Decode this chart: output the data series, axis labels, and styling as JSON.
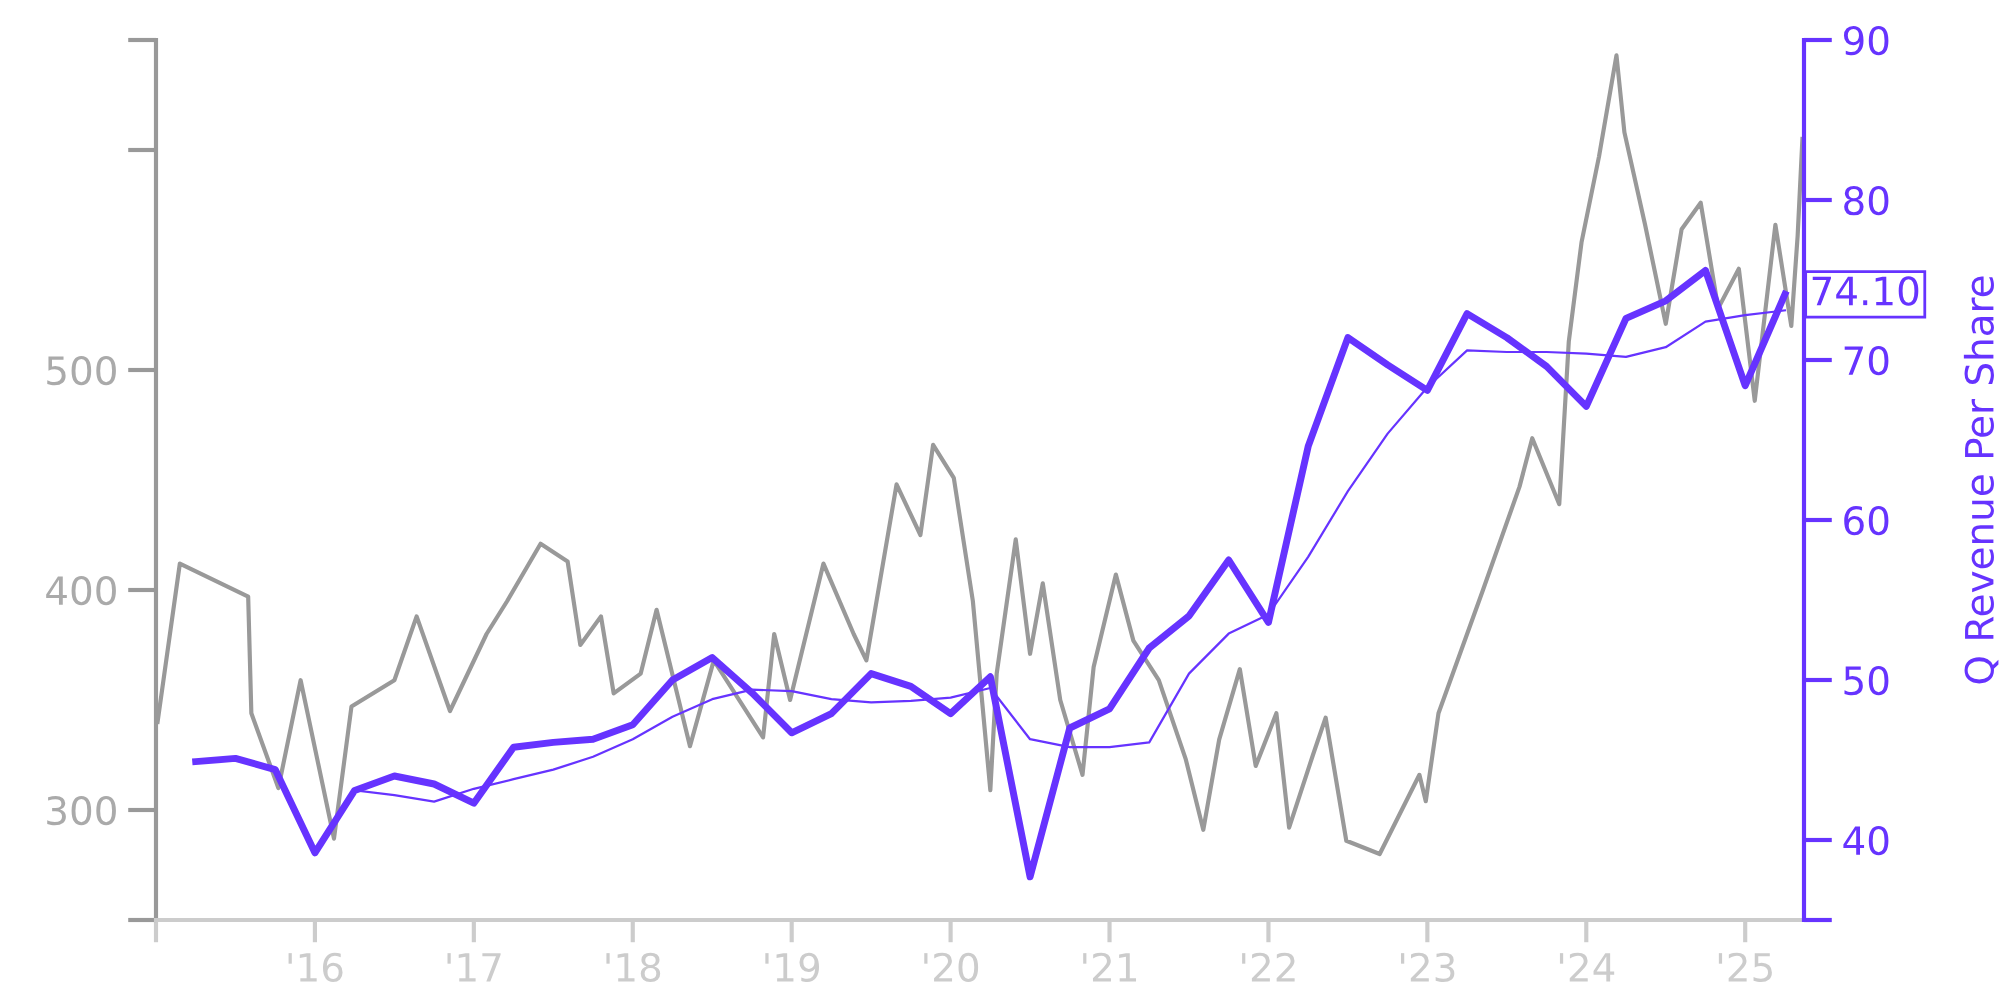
{
  "chart_data": {
    "type": "line",
    "ylabel": null,
    "y2label": "Q Revenue Per Share",
    "xlim": [
      2015.0,
      2025.37
    ],
    "xticks": [
      {
        "value": 2015,
        "label": null
      },
      {
        "value": 2016,
        "label": "'16"
      },
      {
        "value": 2017,
        "label": "'17"
      },
      {
        "value": 2018,
        "label": "'18"
      },
      {
        "value": 2019,
        "label": "'19"
      },
      {
        "value": 2020,
        "label": "'20"
      },
      {
        "value": 2021,
        "label": "'21"
      },
      {
        "value": 2022,
        "label": "'22"
      },
      {
        "value": 2023,
        "label": "'23"
      },
      {
        "value": 2024,
        "label": "'24"
      },
      {
        "value": 2025,
        "label": "'25"
      }
    ],
    "ylim": [
      250,
      650
    ],
    "yticks": [
      {
        "value": 250,
        "label": null
      },
      300,
      400,
      500,
      {
        "value": 600,
        "label": null
      },
      {
        "value": 650,
        "label": null
      }
    ],
    "y2lim": [
      35,
      90
    ],
    "y2ticks": [
      {
        "value": 35,
        "label": null
      },
      40,
      50,
      60,
      70,
      80,
      90
    ],
    "grid": false,
    "series": [
      {
        "color": "#999999",
        "x": [
          2015.01,
          2015.15,
          2015.58,
          2015.6,
          2015.77,
          2015.91,
          2016.12,
          2016.23,
          2016.5,
          2016.64,
          2016.85,
          2017.08,
          2017.21,
          2017.42,
          2017.59,
          2017.67,
          2017.8,
          2017.88,
          2018.05,
          2018.15,
          2018.36,
          2018.51,
          2018.82,
          2018.89,
          2018.99,
          2019.2,
          2019.39,
          2019.47,
          2019.66,
          2019.81,
          2019.89,
          2020.02,
          2020.14,
          2020.25,
          2020.29,
          2020.41,
          2020.5,
          2020.58,
          2020.69,
          2020.83,
          2020.9,
          2021.04,
          2021.15,
          2021.31,
          2021.48,
          2021.59,
          2021.69,
          2021.82,
          2021.92,
          2022.05,
          2022.13,
          2022.28,
          2022.36,
          2022.49,
          2022.7,
          2022.95,
          2022.99,
          2023.07,
          2023.35,
          2023.58,
          2023.66,
          2023.83,
          2023.89,
          2023.97,
          2024.08,
          2024.19,
          2024.24,
          2024.37,
          2024.5,
          2024.6,
          2024.72,
          2024.83,
          2024.96,
          2025.06,
          2025.19,
          2025.29,
          2025.33,
          2025.36
        ],
        "values": [
          340,
          412,
          397,
          344,
          310,
          359,
          287,
          347,
          359,
          388,
          345,
          380,
          395,
          421,
          413,
          375,
          388,
          353,
          362,
          391,
          329,
          368,
          333,
          380,
          350,
          412,
          380,
          368,
          448,
          425,
          466,
          451,
          395,
          309,
          362,
          423,
          371,
          403,
          350,
          316,
          365,
          407,
          377,
          359,
          323,
          291,
          332,
          364,
          320,
          344,
          292,
          325,
          342,
          286,
          280,
          316,
          304,
          344,
          400,
          447,
          469,
          439,
          513,
          558,
          597,
          643,
          608,
          566,
          521,
          564,
          576,
          528,
          546,
          486,
          566,
          520,
          561,
          605
        ]
      },
      {
        "color": "#6633ff",
        "axis": "y2",
        "x": [
          2015.25,
          2015.5,
          2015.75,
          2016.0,
          2016.25,
          2016.5,
          2016.75,
          2017.0,
          2017.25,
          2017.5,
          2017.75,
          2018.0,
          2018.25,
          2018.5,
          2018.75,
          2019.0,
          2019.25,
          2019.5,
          2019.75,
          2020.0,
          2020.25,
          2020.5,
          2020.75,
          2021.0,
          2021.25,
          2021.5,
          2021.75,
          2022.0,
          2022.25,
          2022.5,
          2022.75,
          2023.0,
          2023.25,
          2023.5,
          2023.75,
          2024.0,
          2024.25,
          2024.5,
          2024.75,
          2025.0,
          2025.25
        ],
        "values": [
          44.9,
          45.1,
          44.4,
          39.2,
          43.1,
          44.0,
          43.5,
          42.3,
          45.8,
          46.1,
          46.3,
          47.2,
          50.0,
          51.4,
          49.2,
          46.7,
          47.9,
          50.4,
          49.6,
          47.9,
          50.2,
          37.7,
          47.0,
          48.2,
          52.0,
          54.0,
          57.5,
          53.6,
          64.6,
          71.4,
          69.7,
          68.1,
          72.9,
          71.4,
          69.6,
          67.1,
          72.6,
          73.7,
          75.6,
          68.4,
          74.1
        ]
      },
      {
        "color": "#6633ff",
        "axis": "y2",
        "x": [
          2016.25,
          2016.5,
          2016.75,
          2017.0,
          2017.25,
          2017.5,
          2017.75,
          2018.0,
          2018.25,
          2018.5,
          2018.75,
          2019.0,
          2019.25,
          2019.5,
          2019.75,
          2020.0,
          2020.25,
          2020.5,
          2020.75,
          2021.0,
          2021.25,
          2021.5,
          2021.75,
          2022.0,
          2022.25,
          2022.5,
          2022.75,
          2023.0,
          2023.25,
          2023.5,
          2023.75,
          2024.0,
          2024.25,
          2024.5,
          2024.75,
          2025.0,
          2025.25
        ],
        "values": [
          43.1,
          42.8,
          42.4,
          43.2,
          43.8,
          44.4,
          45.2,
          46.3,
          47.7,
          48.8,
          49.4,
          49.3,
          48.8,
          48.6,
          48.7,
          48.9,
          49.5,
          46.3,
          45.8,
          45.8,
          46.1,
          50.4,
          52.9,
          54.1,
          57.7,
          61.8,
          65.4,
          68.3,
          70.6,
          70.5,
          70.5,
          70.4,
          70.2,
          70.8,
          72.4,
          72.8,
          73.1
        ]
      }
    ],
    "annotations": [
      "74.10"
    ]
  }
}
